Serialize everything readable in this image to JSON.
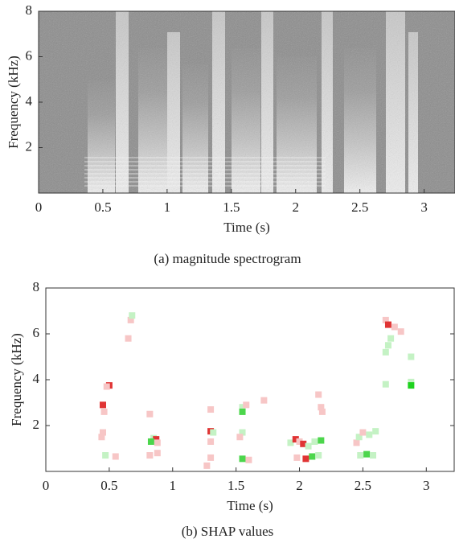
{
  "chart_data": [
    {
      "type": "spectrogram",
      "xlabel": "Time (s)",
      "ylabel": "Frequency (kHz)",
      "caption": "(a) magnitude spectrogram",
      "xlim": [
        0,
        3.24
      ],
      "ylim": [
        0,
        8
      ],
      "xticks": [
        0,
        0.5,
        1,
        1.5,
        2,
        2.5,
        3
      ],
      "yticks": [
        2,
        4,
        6,
        8
      ]
    },
    {
      "type": "scatter",
      "xlabel": "Time (s)",
      "ylabel": "Frequency (kHz)",
      "caption": "(b) SHAP values",
      "xlim": [
        0,
        3.22
      ],
      "ylim": [
        0,
        8
      ],
      "xticks": [
        0,
        0.5,
        1,
        1.5,
        2,
        2.5,
        3
      ],
      "yticks": [
        2,
        4,
        6,
        8
      ],
      "x": [
        0.45,
        0.5,
        0.46,
        0.48,
        0.45,
        0.44,
        0.47,
        0.55,
        0.65,
        0.67,
        0.68,
        0.82,
        0.85,
        0.87,
        0.83,
        0.88,
        0.82,
        0.88,
        1.3,
        1.3,
        1.32,
        1.3,
        1.3,
        1.27,
        1.55,
        1.55,
        1.58,
        1.55,
        1.53,
        1.55,
        1.6,
        1.72,
        1.93,
        1.97,
        2.0,
        2.03,
        2.07,
        2.12,
        2.17,
        1.98,
        2.05,
        2.1,
        2.15,
        2.15,
        2.17,
        2.18,
        2.45,
        2.47,
        2.5,
        2.55,
        2.6,
        2.48,
        2.53,
        2.58,
        2.68,
        2.7,
        2.75,
        2.8,
        2.72,
        2.7,
        2.68,
        2.68,
        2.88,
        2.88,
        2.88
      ],
      "y": [
        2.9,
        3.75,
        2.6,
        3.7,
        1.7,
        1.5,
        0.7,
        0.65,
        5.8,
        6.6,
        6.8,
        2.5,
        1.45,
        1.4,
        1.3,
        1.25,
        0.7,
        0.8,
        2.7,
        1.75,
        1.7,
        1.3,
        0.6,
        0.25,
        2.8,
        2.6,
        2.9,
        1.7,
        1.5,
        0.55,
        0.5,
        3.1,
        1.25,
        1.4,
        1.3,
        1.2,
        1.1,
        1.3,
        1.35,
        0.6,
        0.55,
        0.65,
        0.7,
        3.35,
        2.8,
        2.6,
        1.25,
        1.5,
        1.7,
        1.6,
        1.75,
        0.7,
        0.75,
        0.7,
        6.6,
        6.4,
        6.3,
        6.1,
        5.8,
        5.5,
        5.2,
        3.8,
        5.0,
        3.9,
        3.75
      ],
      "colors": [
        "#e03434",
        "#e03434",
        "#f7c6c6",
        "#f7c6c6",
        "#f7c6c6",
        "#f7c6c6",
        "#c4f2c4",
        "#f7c6c6",
        "#f7c6c6",
        "#f7c6c6",
        "#c4f2c4",
        "#f7c6c6",
        "#c4f2c4",
        "#e03434",
        "#4cd64c",
        "#f7c6c6",
        "#f7c6c6",
        "#f7c6c6",
        "#f7c6c6",
        "#e03434",
        "#c4f2c4",
        "#f7c6c6",
        "#f7c6c6",
        "#f7c6c6",
        "#c4f2c4",
        "#4cd64c",
        "#f7c6c6",
        "#c4f2c4",
        "#f7c6c6",
        "#4cd64c",
        "#f7c6c6",
        "#f7c6c6",
        "#c4f2c4",
        "#e03434",
        "#f7c6c6",
        "#e03434",
        "#c4f2c4",
        "#c4f2c4",
        "#4cd64c",
        "#f7c6c6",
        "#e03434",
        "#4cd64c",
        "#c4f2c4",
        "#f7c6c6",
        "#f7c6c6",
        "#f7c6c6",
        "#f7c6c6",
        "#c4f2c4",
        "#f7c6c6",
        "#c4f2c4",
        "#c4f2c4",
        "#c4f2c4",
        "#4cd64c",
        "#c4f2c4",
        "#f7c6c6",
        "#e03434",
        "#f7c6c6",
        "#f7c6c6",
        "#c4f2c4",
        "#c4f2c4",
        "#c4f2c4",
        "#c4f2c4",
        "#c4f2c4",
        "#c4f2c4",
        "#1ed21e"
      ]
    }
  ]
}
